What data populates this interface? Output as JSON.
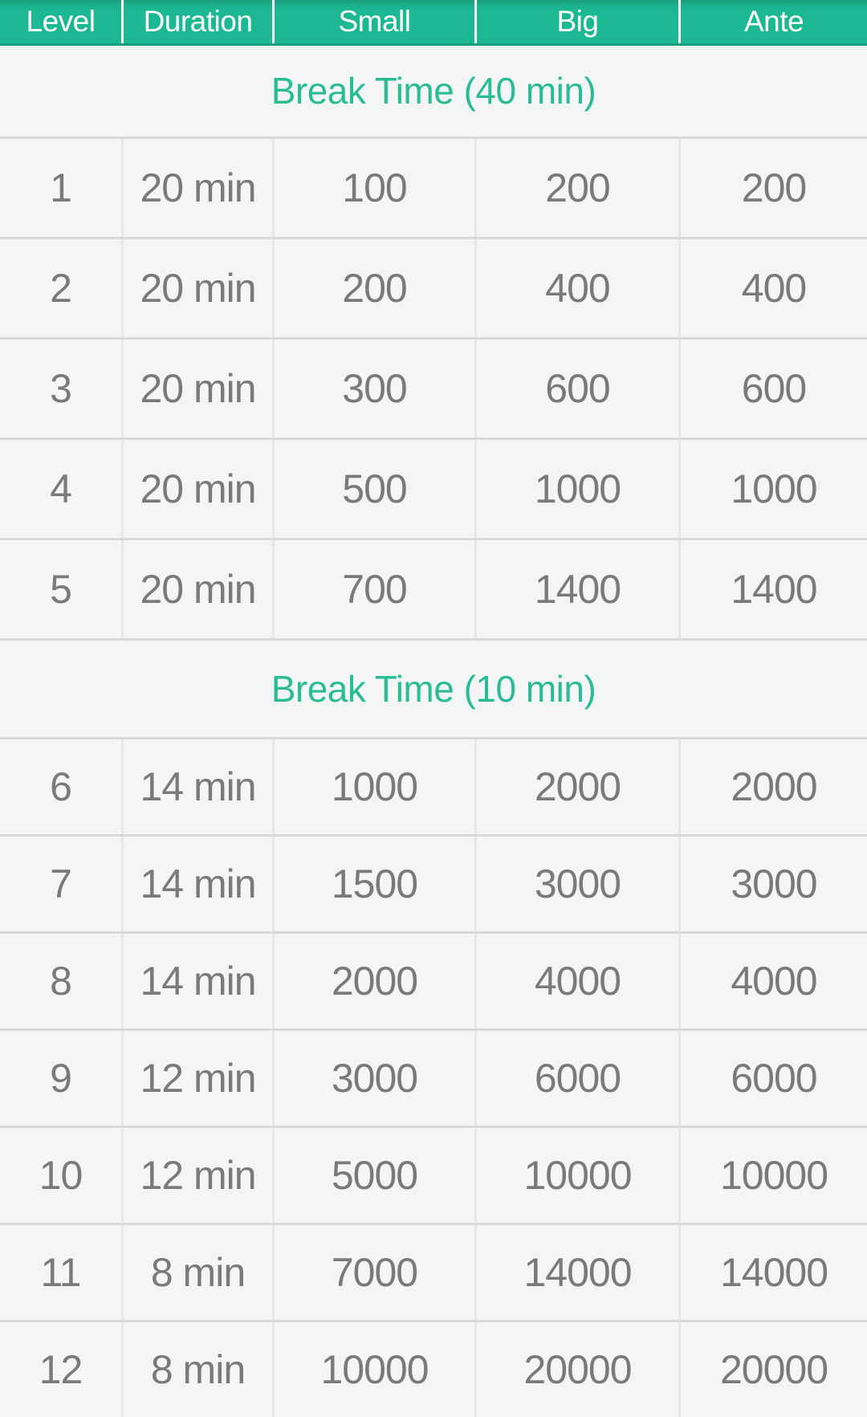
{
  "header": {
    "columns": [
      "Level",
      "Duration",
      "Small",
      "Big",
      "Ante"
    ]
  },
  "breaks": {
    "first": "Break Time (40 min)",
    "second": "Break Time (10 min)"
  },
  "rows": [
    {
      "level": "1",
      "duration": "20 min",
      "small": "100",
      "big": "200",
      "ante": "200"
    },
    {
      "level": "2",
      "duration": "20 min",
      "small": "200",
      "big": "400",
      "ante": "400"
    },
    {
      "level": "3",
      "duration": "20 min",
      "small": "300",
      "big": "600",
      "ante": "600"
    },
    {
      "level": "4",
      "duration": "20 min",
      "small": "500",
      "big": "1000",
      "ante": "1000"
    },
    {
      "level": "5",
      "duration": "20 min",
      "small": "700",
      "big": "1400",
      "ante": "1400"
    },
    {
      "level": "6",
      "duration": "14 min",
      "small": "1000",
      "big": "2000",
      "ante": "2000"
    },
    {
      "level": "7",
      "duration": "14 min",
      "small": "1500",
      "big": "3000",
      "ante": "3000"
    },
    {
      "level": "8",
      "duration": "14 min",
      "small": "2000",
      "big": "4000",
      "ante": "4000"
    },
    {
      "level": "9",
      "duration": "12 min",
      "small": "3000",
      "big": "6000",
      "ante": "6000"
    },
    {
      "level": "10",
      "duration": "12 min",
      "small": "5000",
      "big": "10000",
      "ante": "10000"
    },
    {
      "level": "11",
      "duration": "8 min",
      "small": "7000",
      "big": "14000",
      "ante": "14000"
    },
    {
      "level": "12",
      "duration": "8 min",
      "small": "10000",
      "big": "20000",
      "ante": "20000"
    }
  ],
  "colors": {
    "header_bg": "#1cb893",
    "header_border_bottom": "#149e7c",
    "header_text": "#ffffff",
    "break_text": "#2bbc96",
    "cell_text": "#7a7a7a",
    "row_bg": "#f4f5f5",
    "row_border": "#d9d9d9",
    "column_separator": "#e7e7e7"
  }
}
